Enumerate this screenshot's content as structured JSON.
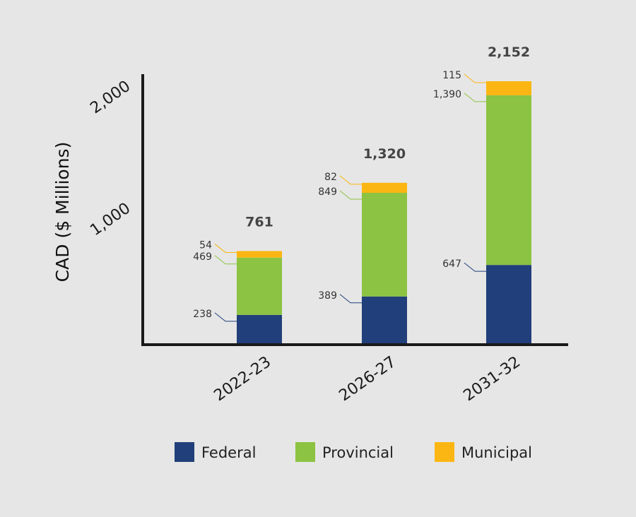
{
  "chart_data": {
    "type": "bar",
    "stacked": true,
    "ylabel": "CAD ($ Millions)",
    "xlabel": "",
    "categories": [
      "2022-23",
      "2026-27",
      "2031-32"
    ],
    "series": [
      {
        "name": "Federal",
        "color": "#213f7a",
        "values": [
          238,
          389,
          647
        ]
      },
      {
        "name": "Provincial",
        "color": "#8cc342",
        "values": [
          469,
          849,
          1390
        ]
      },
      {
        "name": "Municipal",
        "color": "#fbb613",
        "values": [
          54,
          82,
          115
        ]
      }
    ],
    "segment_labels": [
      [
        "238",
        "389",
        "647"
      ],
      [
        "469",
        "849",
        "1,390"
      ],
      [
        "54",
        "82",
        "115"
      ]
    ],
    "totals": [
      761,
      1320,
      2152
    ],
    "total_labels": [
      "761",
      "1,320",
      "2,152"
    ],
    "yticks": [
      1000,
      2000
    ],
    "ytick_labels": [
      "1,000",
      "2,000"
    ],
    "ylim": [
      0,
      2200
    ],
    "grid": false,
    "legend_position": "bottom"
  }
}
